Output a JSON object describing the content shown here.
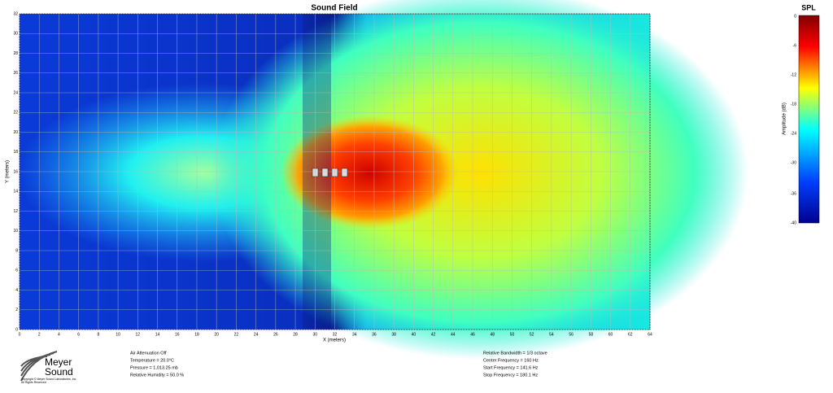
{
  "plot": {
    "title": "Sound Field",
    "x_label": "X (meters)",
    "y_label": "Y (meters)",
    "x_ticks": [
      "0",
      "2",
      "4",
      "6",
      "8",
      "10",
      "12",
      "14",
      "16",
      "18",
      "20",
      "22",
      "24",
      "26",
      "28",
      "30",
      "32",
      "34",
      "36",
      "38",
      "40",
      "42",
      "44",
      "46",
      "48",
      "50",
      "52",
      "54",
      "56",
      "58",
      "60",
      "62",
      "64"
    ],
    "y_ticks": [
      "0",
      "2",
      "4",
      "6",
      "8",
      "10",
      "12",
      "14",
      "16",
      "18",
      "20",
      "22",
      "24",
      "26",
      "28",
      "30",
      "32"
    ]
  },
  "colorbar": {
    "title": "SPL",
    "label": "Amplitude (dB)",
    "ticks": [
      "0",
      "-6",
      "-12",
      "-18",
      "-24",
      "-30",
      "-36",
      "-40"
    ]
  },
  "logo": {
    "line1": "Meyer",
    "line2": "Sound",
    "copyright": "Copyright © Meyer Sound Laboratories, Inc.",
    "rights": "All Rights Reserved"
  },
  "conditions": [
    "Air Attenuation Off",
    "Temperature = 20.0°C",
    "Pressure = 1,013.25 mb",
    "Relative Humidity = 50.0 %"
  ],
  "frequency": [
    "Relative Bandwidth = 1/3 octave",
    "Center Frequency = 160 Hz",
    "Start Frequency = 141.6 Hz",
    "Stop Frequency = 180.1 Hz"
  ]
}
